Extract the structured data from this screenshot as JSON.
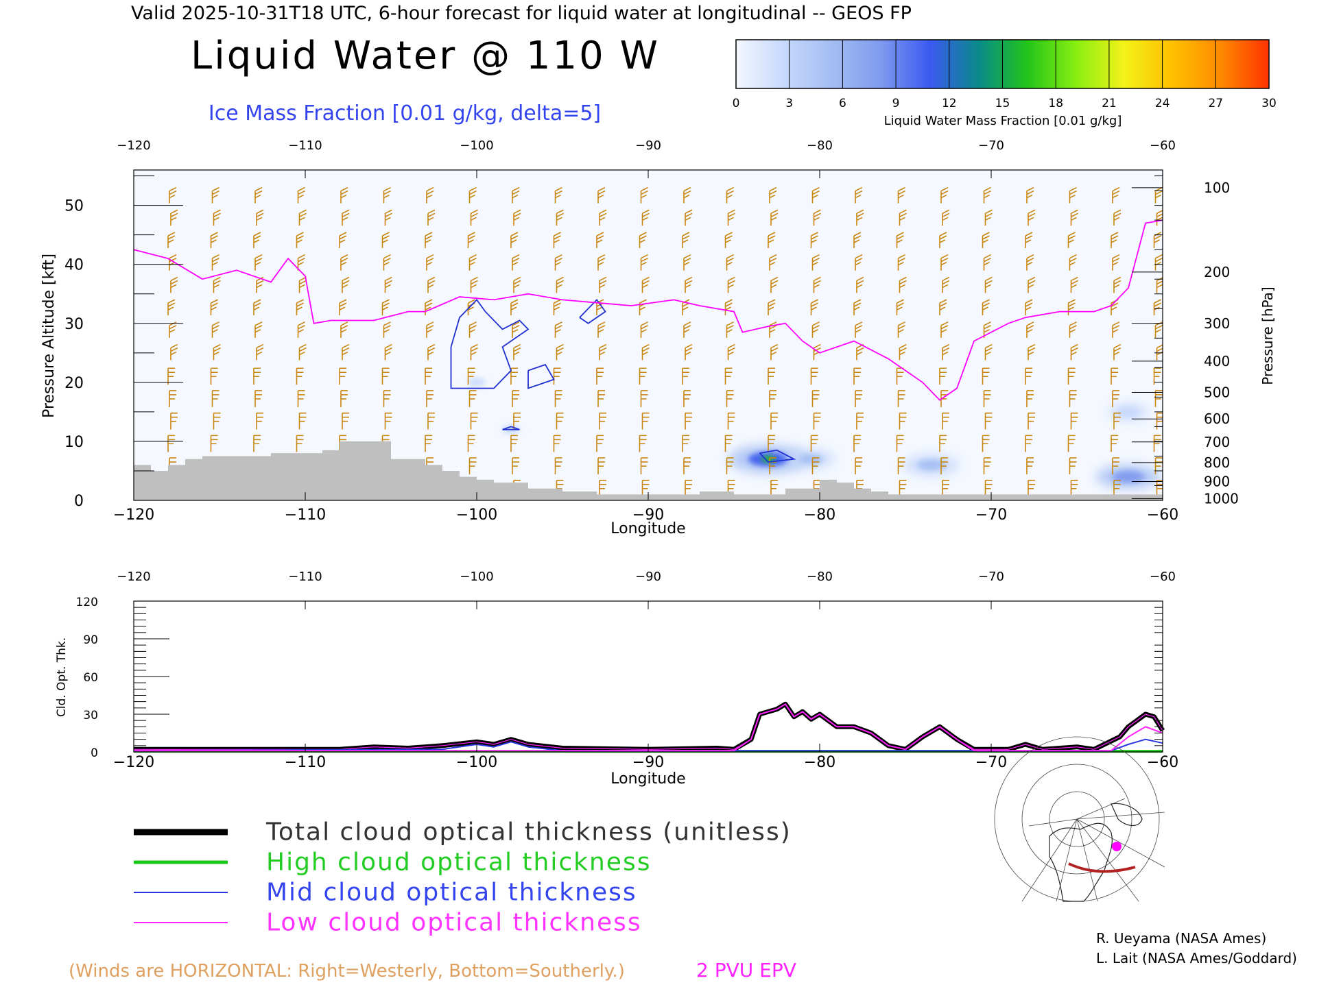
{
  "header": {
    "valid_line": "Valid 2025-10-31T18 UTC, 6-hour forecast for liquid water at longitudinal -- GEOS FP",
    "title": "Liquid Water @ 110 W",
    "subtitle": "Ice Mass Fraction [0.01 g/kg, delta=5]"
  },
  "colorbar": {
    "label": "Liquid Water Mass Fraction [0.01 g/kg]",
    "ticks": [
      "0",
      "3",
      "6",
      "9",
      "12",
      "15",
      "18",
      "21",
      "24",
      "27",
      "30"
    ],
    "colors": [
      "#f4f8ff",
      "#c6d8fb",
      "#a3bdf3",
      "#7f99ef",
      "#3a5af0",
      "#0a8a8a",
      "#22c31b",
      "#86ee12",
      "#f2f21a",
      "#ffc000",
      "#ff8a00",
      "#ff3300"
    ]
  },
  "colors": {
    "wind_barb": "#c8860e",
    "epv": "#ff00ff",
    "ice": "#2030d0",
    "terrain": "#bfbfbf",
    "total": "#000000",
    "high": "#18c818",
    "mid": "#2a35e0",
    "low": "#ff22ff"
  },
  "chart_data": [
    {
      "type": "heatmap",
      "title": "Liquid Water @ 110 W",
      "xlabel": "Longitude",
      "ylabel": "Pressure Altitude [kft]",
      "y2label": "Pressure [hPa]",
      "xlim": [
        -120,
        -60
      ],
      "ylim": [
        0,
        56
      ],
      "x_ticks": [
        "-120",
        "-110",
        "-100",
        "-90",
        "-80",
        "-70",
        "-60"
      ],
      "y_ticks": [
        "0",
        "10",
        "20",
        "30",
        "40",
        "50"
      ],
      "pressure_ticks": [
        {
          "label": "100",
          "kft": 53
        },
        {
          "label": "200",
          "kft": 38.7
        },
        {
          "label": "300",
          "kft": 30
        },
        {
          "label": "400",
          "kft": 23.6
        },
        {
          "label": "500",
          "kft": 18.3
        },
        {
          "label": "600",
          "kft": 13.8
        },
        {
          "label": "700",
          "kft": 9.9
        },
        {
          "label": "800",
          "kft": 6.4
        },
        {
          "label": "900",
          "kft": 3.2
        },
        {
          "label": "1000",
          "kft": 0.3
        }
      ],
      "epv_2pvu_kft": [
        [
          -120,
          42.5
        ],
        [
          -118,
          41
        ],
        [
          -116,
          37.5
        ],
        [
          -114,
          39
        ],
        [
          -112,
          37
        ],
        [
          -111,
          41
        ],
        [
          -110,
          38
        ],
        [
          -109.5,
          30
        ],
        [
          -108.5,
          30.5
        ],
        [
          -107,
          30.5
        ],
        [
          -106,
          30.5
        ],
        [
          -104,
          32
        ],
        [
          -103,
          32
        ],
        [
          -101,
          34.5
        ],
        [
          -99,
          34
        ],
        [
          -97,
          35
        ],
        [
          -95,
          34
        ],
        [
          -93,
          33.5
        ],
        [
          -91,
          33
        ],
        [
          -88.5,
          34
        ],
        [
          -87,
          33
        ],
        [
          -85,
          32
        ],
        [
          -84.5,
          28.5
        ],
        [
          -83,
          29.5
        ],
        [
          -82,
          30
        ],
        [
          -81,
          27
        ],
        [
          -80,
          25
        ],
        [
          -78,
          27
        ],
        [
          -76,
          24
        ],
        [
          -74,
          20
        ],
        [
          -73,
          17
        ],
        [
          -72,
          19
        ],
        [
          -71,
          27
        ],
        [
          -69,
          30
        ],
        [
          -68,
          31
        ],
        [
          -66,
          32
        ],
        [
          -64,
          32
        ],
        [
          -63,
          33
        ],
        [
          -62,
          36
        ],
        [
          -61,
          47
        ],
        [
          -60,
          47.5
        ]
      ],
      "ice_contours_kft": [
        [
          [
            -101.5,
            26
          ],
          [
            -101,
            31
          ],
          [
            -100,
            34
          ],
          [
            -99.5,
            32
          ],
          [
            -98.5,
            29
          ],
          [
            -97.5,
            30.5
          ],
          [
            -97,
            29
          ],
          [
            -98.5,
            26
          ],
          [
            -98,
            22
          ],
          [
            -99,
            19
          ],
          [
            -101.5,
            19
          ],
          [
            -101.5,
            26
          ]
        ],
        [
          [
            -94,
            31
          ],
          [
            -93,
            34
          ],
          [
            -92.5,
            32
          ],
          [
            -93.5,
            30
          ],
          [
            -94,
            31
          ]
        ],
        [
          [
            -97,
            22
          ],
          [
            -96,
            23
          ],
          [
            -95.5,
            20.5
          ],
          [
            -97,
            19
          ],
          [
            -97,
            22
          ]
        ],
        [
          [
            -98.5,
            12
          ],
          [
            -98,
            12.5
          ],
          [
            -97.5,
            12
          ],
          [
            -98.5,
            12
          ]
        ],
        [
          [
            -83.5,
            8
          ],
          [
            -82.5,
            8.5
          ],
          [
            -81.5,
            7
          ],
          [
            -83,
            6.5
          ],
          [
            -83.5,
            8
          ]
        ]
      ],
      "liquid_water_blobs": [
        {
          "lon": -100,
          "kft": 20,
          "value": 3
        },
        {
          "lon": -98,
          "kft": 12,
          "value": 3
        },
        {
          "lon": -83,
          "kft": 7,
          "value": 14
        },
        {
          "lon": -80.5,
          "kft": 7,
          "value": 6
        },
        {
          "lon": -73.5,
          "kft": 6,
          "value": 8
        },
        {
          "lon": -62,
          "kft": 4,
          "value": 10
        },
        {
          "lon": -62,
          "kft": 15,
          "value": 4
        }
      ],
      "terrain_kft": [
        [
          -120,
          6
        ],
        [
          -119,
          5
        ],
        [
          -118,
          6
        ],
        [
          -117,
          7
        ],
        [
          -116,
          7.5
        ],
        [
          -114,
          7.5
        ],
        [
          -112,
          8
        ],
        [
          -110,
          8
        ],
        [
          -109,
          8.5
        ],
        [
          -108,
          10
        ],
        [
          -106,
          10
        ],
        [
          -105,
          7
        ],
        [
          -104,
          7
        ],
        [
          -103,
          6
        ],
        [
          -102,
          5
        ],
        [
          -101,
          4
        ],
        [
          -100,
          3.5
        ],
        [
          -99,
          3
        ],
        [
          -97,
          2
        ],
        [
          -95,
          1.5
        ],
        [
          -93,
          1
        ],
        [
          -90,
          1
        ],
        [
          -87,
          1.5
        ],
        [
          -85,
          1
        ],
        [
          -82,
          2
        ],
        [
          -80,
          3.5
        ],
        [
          -79,
          3
        ],
        [
          -78,
          2
        ],
        [
          -77,
          1.5
        ],
        [
          -76,
          1
        ],
        [
          -60,
          1
        ]
      ]
    },
    {
      "type": "line",
      "xlabel": "Longitude",
      "ylabel": "Cld. Opt. Thk.",
      "xlim": [
        -120,
        -60
      ],
      "ylim": [
        0,
        120
      ],
      "x_ticks": [
        "-120",
        "-110",
        "-100",
        "-90",
        "-80",
        "-70",
        "-60"
      ],
      "y_ticks": [
        "0",
        "30",
        "60",
        "90",
        "120"
      ],
      "series": [
        {
          "name": "Total cloud optical thickness (unitless)",
          "key": "total",
          "points": [
            [
              -120,
              2
            ],
            [
              -108,
              2
            ],
            [
              -106,
              4
            ],
            [
              -104,
              3
            ],
            [
              -102,
              5
            ],
            [
              -100,
              8
            ],
            [
              -99,
              6
            ],
            [
              -98,
              10
            ],
            [
              -97,
              6
            ],
            [
              -95,
              3
            ],
            [
              -90,
              2
            ],
            [
              -86,
              3
            ],
            [
              -85,
              2
            ],
            [
              -84,
              10
            ],
            [
              -83.5,
              30
            ],
            [
              -82.5,
              34
            ],
            [
              -82,
              38
            ],
            [
              -81.5,
              28
            ],
            [
              -81,
              32
            ],
            [
              -80.5,
              26
            ],
            [
              -80,
              30
            ],
            [
              -79,
              20
            ],
            [
              -78,
              20
            ],
            [
              -77,
              15
            ],
            [
              -76,
              5
            ],
            [
              -75,
              2
            ],
            [
              -74,
              12
            ],
            [
              -73,
              20
            ],
            [
              -72,
              10
            ],
            [
              -71,
              2
            ],
            [
              -69,
              2
            ],
            [
              -68,
              6
            ],
            [
              -67,
              2
            ],
            [
              -65,
              4
            ],
            [
              -64,
              2
            ],
            [
              -62.5,
              12
            ],
            [
              -62,
              20
            ],
            [
              -61,
              30
            ],
            [
              -60.5,
              28
            ],
            [
              -60,
              17
            ]
          ]
        },
        {
          "name": "High cloud optical thickness",
          "key": "high",
          "points": [
            [
              -120,
              0.5
            ],
            [
              -60,
              0.5
            ]
          ]
        },
        {
          "name": "Mid cloud optical thickness",
          "key": "mid",
          "points": [
            [
              -120,
              1
            ],
            [
              -102,
              2
            ],
            [
              -100,
              6
            ],
            [
              -99,
              4
            ],
            [
              -98,
              8
            ],
            [
              -97,
              4
            ],
            [
              -95,
              1
            ],
            [
              -63,
              1
            ],
            [
              -62,
              6
            ],
            [
              -61,
              10
            ],
            [
              -60,
              7
            ]
          ]
        },
        {
          "name": "Low cloud optical thickness",
          "key": "low",
          "points": [
            [
              -120,
              1
            ],
            [
              -85,
              1
            ],
            [
              -84,
              10
            ],
            [
              -83.5,
              30
            ],
            [
              -82.5,
              34
            ],
            [
              -82,
              38
            ],
            [
              -81.5,
              28
            ],
            [
              -81,
              32
            ],
            [
              -80.5,
              26
            ],
            [
              -80,
              30
            ],
            [
              -79,
              20
            ],
            [
              -78,
              20
            ],
            [
              -77,
              15
            ],
            [
              -76,
              5
            ],
            [
              -75,
              2
            ],
            [
              -74,
              12
            ],
            [
              -73,
              20
            ],
            [
              -72,
              10
            ],
            [
              -71,
              1
            ],
            [
              -63,
              1
            ],
            [
              -62,
              12
            ],
            [
              -61,
              20
            ],
            [
              -60,
              15
            ]
          ]
        }
      ]
    }
  ],
  "legend": {
    "total": "Total cloud optical thickness (unitless)",
    "high": "High cloud optical thickness",
    "mid": "Mid cloud optical thickness",
    "low": "Low cloud optical thickness"
  },
  "footer": {
    "winds_note": "(Winds are HORIZONTAL: Right=Westerly, Bottom=Southerly.)",
    "epv_label": "2 PVU EPV",
    "credit1": "R. Ueyama (NASA Ames)",
    "credit2": "L. Lait (NASA Ames/Goddard)"
  }
}
